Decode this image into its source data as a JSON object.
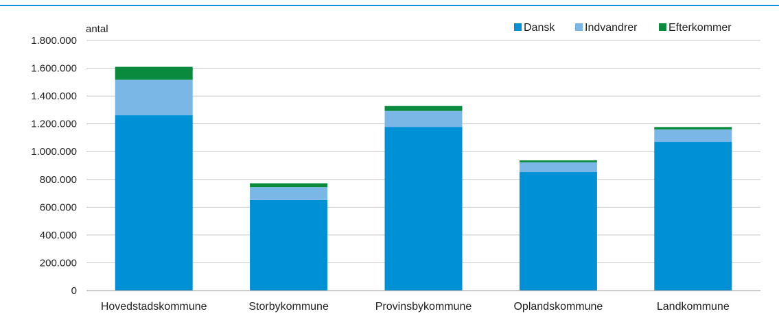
{
  "chart_data": {
    "type": "bar",
    "stacked": true,
    "unit_label": "antal",
    "categories": [
      "Hovedstadskommune",
      "Storbykommune",
      "Provinsbykommune",
      "Oplandskommune",
      "Landkommune"
    ],
    "series": [
      {
        "name": "Dansk",
        "color": "#0090d6",
        "values": [
          1262000,
          652000,
          1178000,
          853000,
          1070000
        ]
      },
      {
        "name": "Indvandrer",
        "color": "#7ab7e6",
        "values": [
          255000,
          92000,
          115000,
          70000,
          90000
        ]
      },
      {
        "name": "Efterkommer",
        "color": "#0a8a3c",
        "values": [
          93000,
          28000,
          35000,
          14000,
          17000
        ]
      }
    ],
    "ylim": [
      0,
      1800000
    ],
    "yticks": [
      "0",
      "200.000",
      "400.000",
      "600.000",
      "800.000",
      "1.000.000",
      "1.200.000",
      "1.400.000",
      "1.600.000",
      "1.800.000"
    ],
    "grid": true,
    "legend_position": "top-right"
  }
}
